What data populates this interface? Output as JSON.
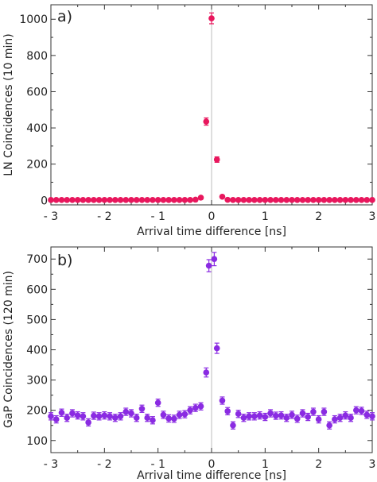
{
  "chart_data": [
    {
      "type": "scatter",
      "panel_label": "a)",
      "xlabel": "Arrival time difference [ns]",
      "ylabel": "LN Coincidences (10 min)",
      "xlim": [
        -3,
        3
      ],
      "ylim": [
        -25,
        1080
      ],
      "xticks": [
        -3,
        -2,
        -1,
        0,
        1,
        2,
        3
      ],
      "xtick_labels": [
        "- 3",
        "- 2",
        "- 1",
        "0",
        "1",
        "2",
        "3"
      ],
      "yticks": [
        0,
        200,
        400,
        600,
        800,
        1000
      ],
      "ytick_labels": [
        "0",
        "200",
        "400",
        "600",
        "800",
        "1000"
      ],
      "grid": false,
      "marker_color": "#e8175d",
      "points": [
        {
          "x": -3.0,
          "y": 2,
          "err": 3
        },
        {
          "x": -2.9,
          "y": 2,
          "err": 3
        },
        {
          "x": -2.8,
          "y": 2,
          "err": 3
        },
        {
          "x": -2.7,
          "y": 2,
          "err": 3
        },
        {
          "x": -2.6,
          "y": 2,
          "err": 3
        },
        {
          "x": -2.5,
          "y": 2,
          "err": 3
        },
        {
          "x": -2.4,
          "y": 2,
          "err": 3
        },
        {
          "x": -2.3,
          "y": 2,
          "err": 3
        },
        {
          "x": -2.2,
          "y": 2,
          "err": 3
        },
        {
          "x": -2.1,
          "y": 2,
          "err": 3
        },
        {
          "x": -2.0,
          "y": 2,
          "err": 3
        },
        {
          "x": -1.9,
          "y": 2,
          "err": 3
        },
        {
          "x": -1.8,
          "y": 2,
          "err": 3
        },
        {
          "x": -1.7,
          "y": 2,
          "err": 3
        },
        {
          "x": -1.6,
          "y": 2,
          "err": 3
        },
        {
          "x": -1.5,
          "y": 2,
          "err": 3
        },
        {
          "x": -1.4,
          "y": 2,
          "err": 3
        },
        {
          "x": -1.3,
          "y": 2,
          "err": 3
        },
        {
          "x": -1.2,
          "y": 2,
          "err": 3
        },
        {
          "x": -1.1,
          "y": 2,
          "err": 3
        },
        {
          "x": -1.0,
          "y": 2,
          "err": 3
        },
        {
          "x": -0.9,
          "y": 2,
          "err": 3
        },
        {
          "x": -0.8,
          "y": 2,
          "err": 3
        },
        {
          "x": -0.7,
          "y": 2,
          "err": 3
        },
        {
          "x": -0.6,
          "y": 2,
          "err": 3
        },
        {
          "x": -0.5,
          "y": 2,
          "err": 3
        },
        {
          "x": -0.4,
          "y": 2,
          "err": 3
        },
        {
          "x": -0.3,
          "y": 4,
          "err": 3
        },
        {
          "x": -0.2,
          "y": 15,
          "err": 5
        },
        {
          "x": -0.1,
          "y": 435,
          "err": 20
        },
        {
          "x": 0.0,
          "y": 1005,
          "err": 30
        },
        {
          "x": 0.1,
          "y": 225,
          "err": 15
        },
        {
          "x": 0.2,
          "y": 20,
          "err": 5
        },
        {
          "x": 0.3,
          "y": 3,
          "err": 3
        },
        {
          "x": 0.4,
          "y": 2,
          "err": 3
        },
        {
          "x": 0.5,
          "y": 2,
          "err": 3
        },
        {
          "x": 0.6,
          "y": 2,
          "err": 3
        },
        {
          "x": 0.7,
          "y": 2,
          "err": 3
        },
        {
          "x": 0.8,
          "y": 2,
          "err": 3
        },
        {
          "x": 0.9,
          "y": 2,
          "err": 3
        },
        {
          "x": 1.0,
          "y": 2,
          "err": 3
        },
        {
          "x": 1.1,
          "y": 2,
          "err": 3
        },
        {
          "x": 1.2,
          "y": 2,
          "err": 3
        },
        {
          "x": 1.3,
          "y": 2,
          "err": 3
        },
        {
          "x": 1.4,
          "y": 2,
          "err": 3
        },
        {
          "x": 1.5,
          "y": 2,
          "err": 3
        },
        {
          "x": 1.6,
          "y": 2,
          "err": 3
        },
        {
          "x": 1.7,
          "y": 2,
          "err": 3
        },
        {
          "x": 1.8,
          "y": 2,
          "err": 3
        },
        {
          "x": 1.9,
          "y": 2,
          "err": 3
        },
        {
          "x": 2.0,
          "y": 2,
          "err": 3
        },
        {
          "x": 2.1,
          "y": 2,
          "err": 3
        },
        {
          "x": 2.2,
          "y": 2,
          "err": 3
        },
        {
          "x": 2.3,
          "y": 2,
          "err": 3
        },
        {
          "x": 2.4,
          "y": 2,
          "err": 3
        },
        {
          "x": 2.5,
          "y": 2,
          "err": 3
        },
        {
          "x": 2.6,
          "y": 2,
          "err": 3
        },
        {
          "x": 2.7,
          "y": 2,
          "err": 3
        },
        {
          "x": 2.8,
          "y": 2,
          "err": 3
        },
        {
          "x": 2.9,
          "y": 2,
          "err": 3
        },
        {
          "x": 3.0,
          "y": 2,
          "err": 3
        }
      ]
    },
    {
      "type": "scatter",
      "panel_label": "b)",
      "xlabel": "Arrival time difference [ns]",
      "ylabel": "GaP Coincidences (120 min)",
      "xlim": [
        -3,
        3
      ],
      "ylim": [
        60,
        740
      ],
      "xticks": [
        -3,
        -2,
        -1,
        0,
        1,
        2,
        3
      ],
      "xtick_labels": [
        "- 3",
        "- 2",
        "- 1",
        "0",
        "1",
        "2",
        "3"
      ],
      "yticks": [
        100,
        200,
        300,
        400,
        500,
        600,
        700
      ],
      "ytick_labels": [
        "100",
        "200",
        "300",
        "400",
        "500",
        "600",
        "700"
      ],
      "grid": false,
      "marker_color": "#8a2be2",
      "points": [
        {
          "x": -3.0,
          "y": 180,
          "err": 12
        },
        {
          "x": -2.9,
          "y": 170,
          "err": 12
        },
        {
          "x": -2.8,
          "y": 192,
          "err": 12
        },
        {
          "x": -2.7,
          "y": 175,
          "err": 12
        },
        {
          "x": -2.6,
          "y": 190,
          "err": 12
        },
        {
          "x": -2.5,
          "y": 183,
          "err": 12
        },
        {
          "x": -2.4,
          "y": 180,
          "err": 12
        },
        {
          "x": -2.3,
          "y": 160,
          "err": 12
        },
        {
          "x": -2.2,
          "y": 182,
          "err": 12
        },
        {
          "x": -2.1,
          "y": 180,
          "err": 12
        },
        {
          "x": -2.0,
          "y": 183,
          "err": 12
        },
        {
          "x": -1.9,
          "y": 180,
          "err": 12
        },
        {
          "x": -1.8,
          "y": 175,
          "err": 12
        },
        {
          "x": -1.7,
          "y": 180,
          "err": 12
        },
        {
          "x": -1.6,
          "y": 195,
          "err": 12
        },
        {
          "x": -1.5,
          "y": 190,
          "err": 12
        },
        {
          "x": -1.4,
          "y": 175,
          "err": 12
        },
        {
          "x": -1.3,
          "y": 205,
          "err": 12
        },
        {
          "x": -1.2,
          "y": 175,
          "err": 12
        },
        {
          "x": -1.1,
          "y": 167,
          "err": 12
        },
        {
          "x": -1.0,
          "y": 225,
          "err": 12
        },
        {
          "x": -0.9,
          "y": 185,
          "err": 12
        },
        {
          "x": -0.8,
          "y": 173,
          "err": 12
        },
        {
          "x": -0.7,
          "y": 172,
          "err": 12
        },
        {
          "x": -0.6,
          "y": 185,
          "err": 12
        },
        {
          "x": -0.5,
          "y": 187,
          "err": 12
        },
        {
          "x": -0.4,
          "y": 200,
          "err": 12
        },
        {
          "x": -0.3,
          "y": 208,
          "err": 12
        },
        {
          "x": -0.2,
          "y": 213,
          "err": 12
        },
        {
          "x": -0.1,
          "y": 325,
          "err": 15
        },
        {
          "x": -0.05,
          "y": 678,
          "err": 20
        },
        {
          "x": 0.05,
          "y": 700,
          "err": 22
        },
        {
          "x": 0.1,
          "y": 405,
          "err": 17
        },
        {
          "x": 0.2,
          "y": 232,
          "err": 12
        },
        {
          "x": 0.3,
          "y": 197,
          "err": 12
        },
        {
          "x": 0.4,
          "y": 150,
          "err": 12
        },
        {
          "x": 0.5,
          "y": 188,
          "err": 12
        },
        {
          "x": 0.6,
          "y": 175,
          "err": 12
        },
        {
          "x": 0.7,
          "y": 180,
          "err": 12
        },
        {
          "x": 0.8,
          "y": 180,
          "err": 12
        },
        {
          "x": 0.9,
          "y": 183,
          "err": 12
        },
        {
          "x": 1.0,
          "y": 178,
          "err": 12
        },
        {
          "x": 1.1,
          "y": 190,
          "err": 12
        },
        {
          "x": 1.2,
          "y": 182,
          "err": 12
        },
        {
          "x": 1.3,
          "y": 183,
          "err": 12
        },
        {
          "x": 1.4,
          "y": 175,
          "err": 12
        },
        {
          "x": 1.5,
          "y": 185,
          "err": 12
        },
        {
          "x": 1.6,
          "y": 172,
          "err": 12
        },
        {
          "x": 1.7,
          "y": 190,
          "err": 12
        },
        {
          "x": 1.8,
          "y": 178,
          "err": 12
        },
        {
          "x": 1.9,
          "y": 195,
          "err": 12
        },
        {
          "x": 2.0,
          "y": 170,
          "err": 12
        },
        {
          "x": 2.1,
          "y": 195,
          "err": 12
        },
        {
          "x": 2.2,
          "y": 150,
          "err": 12
        },
        {
          "x": 2.3,
          "y": 170,
          "err": 12
        },
        {
          "x": 2.4,
          "y": 175,
          "err": 12
        },
        {
          "x": 2.5,
          "y": 183,
          "err": 12
        },
        {
          "x": 2.6,
          "y": 175,
          "err": 12
        },
        {
          "x": 2.7,
          "y": 200,
          "err": 12
        },
        {
          "x": 2.8,
          "y": 198,
          "err": 12
        },
        {
          "x": 2.9,
          "y": 185,
          "err": 12
        },
        {
          "x": 3.0,
          "y": 180,
          "err": 12
        }
      ]
    }
  ]
}
